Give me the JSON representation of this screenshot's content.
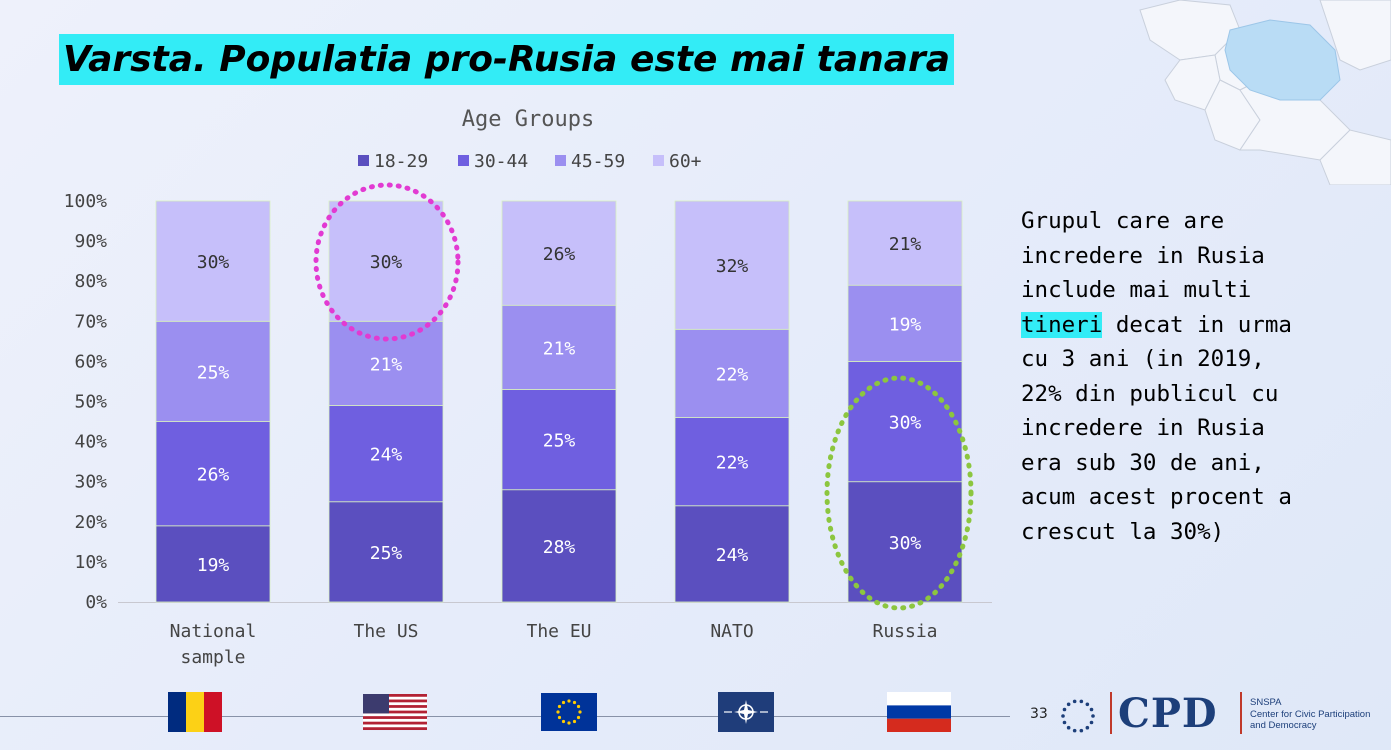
{
  "slide": {
    "title": "Varsta. Populatia pro-Rusia este mai tanara",
    "side_text_parts": [
      "Grupul care are\nincredere in Rusia\ninclude mai multi\n",
      "tineri",
      " decat in urma\ncu 3 ani (in 2019,\n22% din publicul cu\nincredere in Rusia\nera sub 30 de ani,\nacum acest procent a\ncrescut la 30%)"
    ],
    "page_number": "33",
    "logo": {
      "snspa": "SNSPA",
      "cpd": "CPD",
      "sub": [
        "SNSPA",
        "Center for Civic Participation",
        "and Democracy"
      ]
    },
    "flags": [
      "romania-flag",
      "usa-flag",
      "eu-flag",
      "nato-flag",
      "russia-flag"
    ],
    "colors": {
      "title_highlight": "#33ecf6",
      "circle_us": "#e23ad2",
      "circle_russia": "#8cc63f"
    }
  },
  "chart_data": {
    "type": "bar",
    "stacked": true,
    "percent_stacked": true,
    "title": "Age Groups",
    "categories": [
      "National\nsample",
      "The US",
      "The EU",
      "NATO",
      "Russia"
    ],
    "series": [
      {
        "name": "18-29",
        "values": [
          19,
          25,
          28,
          24,
          30
        ],
        "color": "#5b4fbf"
      },
      {
        "name": "30-44",
        "values": [
          26,
          24,
          25,
          22,
          30
        ],
        "color": "#6f5fe0"
      },
      {
        "name": "45-59",
        "values": [
          25,
          21,
          21,
          22,
          19
        ],
        "color": "#9b8ff0"
      },
      {
        "name": "60+",
        "values": [
          30,
          30,
          26,
          32,
          21
        ],
        "color": "#c6bffa"
      }
    ],
    "y_ticks": [
      "0%",
      "10%",
      "20%",
      "30%",
      "40%",
      "50%",
      "60%",
      "70%",
      "80%",
      "90%",
      "100%"
    ],
    "ylim": [
      0,
      100
    ],
    "grid": false,
    "legend_position": "top",
    "highlights": [
      {
        "category": "The US",
        "series": "60+",
        "shape": "dotted-circle",
        "color": "#e23ad2"
      },
      {
        "category": "Russia",
        "series": [
          "18-29",
          "30-44"
        ],
        "shape": "dotted-ellipse",
        "color": "#8cc63f"
      }
    ]
  }
}
